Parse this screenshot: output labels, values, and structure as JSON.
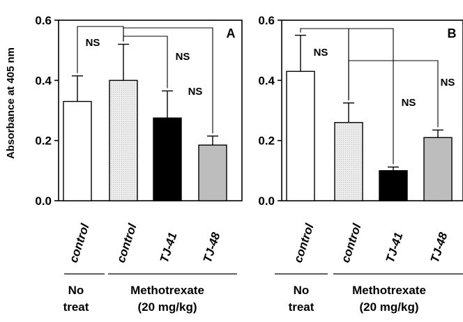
{
  "ylabel": "Absorbance at 405 nm",
  "chart_data": [
    {
      "type": "bar",
      "panel_label": "A",
      "categories": [
        "control",
        "control",
        "TJ-41",
        "TJ-48"
      ],
      "values": [
        0.33,
        0.4,
        0.275,
        0.185
      ],
      "errors": [
        0.085,
        0.12,
        0.09,
        0.03
      ],
      "bar_colors": [
        "#ffffff",
        "#e4e4e4",
        "#000000",
        "#bdbdbd"
      ],
      "ylim": [
        0,
        0.6
      ],
      "yticks": [
        "0.0",
        "0.2",
        "0.4",
        "0.6"
      ],
      "annotations": [
        "NS",
        "NS",
        "NS"
      ],
      "groups": [
        {
          "line1": "No",
          "line2": "treat"
        },
        {
          "line1": "Methotrexate",
          "line2": "(20 mg/kg)"
        }
      ]
    },
    {
      "type": "bar",
      "panel_label": "B",
      "categories": [
        "control",
        "control",
        "TJ-41",
        "TJ-48"
      ],
      "values": [
        0.43,
        0.26,
        0.1,
        0.21
      ],
      "errors": [
        0.12,
        0.065,
        0.012,
        0.025
      ],
      "bar_colors": [
        "#ffffff",
        "#e4e4e4",
        "#000000",
        "#bdbdbd"
      ],
      "ylim": [
        0,
        0.6
      ],
      "yticks": [
        "0.0",
        "0.2",
        "0.4",
        "0.6"
      ],
      "annotations": [
        "NS",
        "NS",
        "NS"
      ],
      "groups": [
        {
          "line1": "No",
          "line2": "treat"
        },
        {
          "line1": "Methotrexate",
          "line2": "(20 mg/kg)"
        }
      ]
    }
  ]
}
